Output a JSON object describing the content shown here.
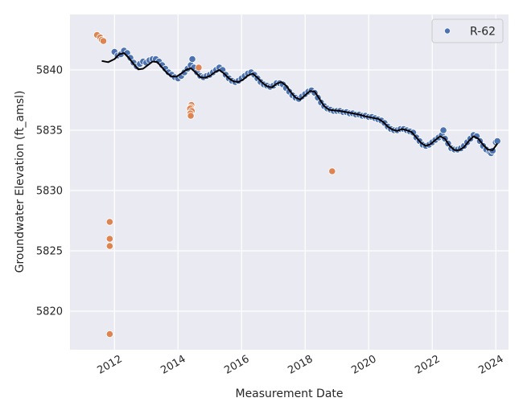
{
  "chart_data": {
    "type": "scatter",
    "title": "",
    "xlabel": "Measurement Date",
    "ylabel": "Groundwater Elevation (ft_amsl)",
    "xlim": [
      2010.6,
      2024.4
    ],
    "ylim": [
      5816.8,
      5844.6
    ],
    "x_ticks": [
      2012,
      2014,
      2016,
      2018,
      2020,
      2022,
      2024
    ],
    "x_tick_labels": [
      "2012",
      "2014",
      "2016",
      "2018",
      "2020",
      "2022",
      "2024"
    ],
    "y_ticks": [
      5820,
      5825,
      5830,
      5835,
      5840
    ],
    "y_tick_labels": [
      "5820",
      "5825",
      "5830",
      "5835",
      "5840"
    ],
    "grid": true,
    "legend": {
      "position": "top-right",
      "entries": [
        "R-62"
      ]
    },
    "colors": {
      "background": "#eaeaf2",
      "grid": "#ffffff",
      "series_valid": "#4c72b0",
      "series_outlier": "#dd8452",
      "trend_line": "#000000"
    },
    "series": [
      {
        "name": "R-62",
        "color": "#4c72b0",
        "points": [
          [
            2012.0,
            5841.5
          ],
          [
            2012.1,
            5841.2
          ],
          [
            2012.2,
            5841.3
          ],
          [
            2012.3,
            5841.6
          ],
          [
            2012.4,
            5841.4
          ],
          [
            2012.5,
            5841.0
          ],
          [
            2012.6,
            5840.6
          ],
          [
            2012.7,
            5840.3
          ],
          [
            2012.8,
            5840.5
          ],
          [
            2012.9,
            5840.7
          ],
          [
            2013.0,
            5840.6
          ],
          [
            2013.1,
            5840.8
          ],
          [
            2013.2,
            5840.9
          ],
          [
            2013.3,
            5840.9
          ],
          [
            2013.4,
            5840.7
          ],
          [
            2013.5,
            5840.4
          ],
          [
            2013.6,
            5840.1
          ],
          [
            2013.7,
            5839.8
          ],
          [
            2013.8,
            5839.6
          ],
          [
            2013.9,
            5839.4
          ],
          [
            2014.0,
            5839.3
          ],
          [
            2014.1,
            5839.5
          ],
          [
            2014.2,
            5839.8
          ],
          [
            2014.3,
            5840.1
          ],
          [
            2014.4,
            5840.4
          ],
          [
            2014.45,
            5840.9
          ],
          [
            2014.5,
            5840.2
          ],
          [
            2014.6,
            5839.8
          ],
          [
            2014.7,
            5839.5
          ],
          [
            2014.8,
            5839.4
          ],
          [
            2014.9,
            5839.5
          ],
          [
            2015.0,
            5839.6
          ],
          [
            2015.1,
            5839.8
          ],
          [
            2015.2,
            5840.0
          ],
          [
            2015.3,
            5840.2
          ],
          [
            2015.4,
            5840.0
          ],
          [
            2015.5,
            5839.6
          ],
          [
            2015.6,
            5839.3
          ],
          [
            2015.7,
            5839.1
          ],
          [
            2015.8,
            5839.0
          ],
          [
            2015.9,
            5839.1
          ],
          [
            2016.0,
            5839.3
          ],
          [
            2016.1,
            5839.5
          ],
          [
            2016.2,
            5839.7
          ],
          [
            2016.3,
            5839.8
          ],
          [
            2016.4,
            5839.6
          ],
          [
            2016.5,
            5839.3
          ],
          [
            2016.6,
            5839.0
          ],
          [
            2016.7,
            5838.8
          ],
          [
            2016.8,
            5838.7
          ],
          [
            2016.9,
            5838.6
          ],
          [
            2017.0,
            5838.7
          ],
          [
            2017.1,
            5838.9
          ],
          [
            2017.2,
            5838.9
          ],
          [
            2017.3,
            5838.8
          ],
          [
            2017.4,
            5838.5
          ],
          [
            2017.5,
            5838.2
          ],
          [
            2017.6,
            5837.9
          ],
          [
            2017.7,
            5837.7
          ],
          [
            2017.8,
            5837.6
          ],
          [
            2017.9,
            5837.8
          ],
          [
            2018.0,
            5838.0
          ],
          [
            2018.1,
            5838.2
          ],
          [
            2018.2,
            5838.3
          ],
          [
            2018.3,
            5838.1
          ],
          [
            2018.4,
            5837.7
          ],
          [
            2018.5,
            5837.3
          ],
          [
            2018.6,
            5837.0
          ],
          [
            2018.7,
            5836.8
          ],
          [
            2018.8,
            5836.7
          ],
          [
            2018.9,
            5836.6
          ],
          [
            2019.0,
            5836.6
          ],
          [
            2019.1,
            5836.6
          ],
          [
            2019.2,
            5836.5
          ],
          [
            2019.3,
            5836.5
          ],
          [
            2019.4,
            5836.4
          ],
          [
            2019.5,
            5836.4
          ],
          [
            2019.6,
            5836.3
          ],
          [
            2019.7,
            5836.3
          ],
          [
            2019.8,
            5836.2
          ],
          [
            2019.9,
            5836.2
          ],
          [
            2020.0,
            5836.1
          ],
          [
            2020.1,
            5836.1
          ],
          [
            2020.2,
            5836.0
          ],
          [
            2020.3,
            5835.9
          ],
          [
            2020.4,
            5835.8
          ],
          [
            2020.5,
            5835.6
          ],
          [
            2020.6,
            5835.3
          ],
          [
            2020.7,
            5835.1
          ],
          [
            2020.8,
            5835.0
          ],
          [
            2020.9,
            5835.0
          ],
          [
            2021.0,
            5835.1
          ],
          [
            2021.1,
            5835.1
          ],
          [
            2021.2,
            5835.0
          ],
          [
            2021.3,
            5834.9
          ],
          [
            2021.4,
            5834.8
          ],
          [
            2021.5,
            5834.4
          ],
          [
            2021.6,
            5834.1
          ],
          [
            2021.7,
            5833.8
          ],
          [
            2021.8,
            5833.7
          ],
          [
            2021.9,
            5833.8
          ],
          [
            2022.0,
            5834.0
          ],
          [
            2022.1,
            5834.2
          ],
          [
            2022.2,
            5834.4
          ],
          [
            2022.3,
            5834.6
          ],
          [
            2022.35,
            5835.0
          ],
          [
            2022.4,
            5834.3
          ],
          [
            2022.5,
            5833.9
          ],
          [
            2022.6,
            5833.5
          ],
          [
            2022.7,
            5833.4
          ],
          [
            2022.8,
            5833.4
          ],
          [
            2022.9,
            5833.5
          ],
          [
            2023.0,
            5833.7
          ],
          [
            2023.1,
            5834.0
          ],
          [
            2023.2,
            5834.3
          ],
          [
            2023.3,
            5834.6
          ],
          [
            2023.4,
            5834.5
          ],
          [
            2023.5,
            5834.1
          ],
          [
            2023.6,
            5833.7
          ],
          [
            2023.7,
            5833.4
          ],
          [
            2023.8,
            5833.2
          ],
          [
            2023.85,
            5833.1
          ],
          [
            2023.9,
            5833.3
          ],
          [
            2024.0,
            5834.0
          ],
          [
            2024.05,
            5834.1
          ]
        ]
      },
      {
        "name": "",
        "color": "#dd8452",
        "points": [
          [
            2011.45,
            5842.9
          ],
          [
            2011.55,
            5842.7
          ],
          [
            2011.6,
            5842.5
          ],
          [
            2011.65,
            5842.4
          ],
          [
            2011.85,
            5827.4
          ],
          [
            2011.85,
            5826.0
          ],
          [
            2011.85,
            5825.4
          ],
          [
            2011.85,
            5818.1
          ],
          [
            2014.42,
            5837.1
          ],
          [
            2014.4,
            5836.9
          ],
          [
            2014.38,
            5836.8
          ],
          [
            2014.43,
            5836.6
          ],
          [
            2014.39,
            5836.4
          ],
          [
            2014.4,
            5836.2
          ],
          [
            2014.65,
            5840.2
          ],
          [
            2018.85,
            5831.6
          ]
        ]
      },
      {
        "name": "",
        "type": "line",
        "color": "#000000",
        "points": [
          [
            2011.6,
            5840.75
          ],
          [
            2011.8,
            5840.65
          ],
          [
            2012.0,
            5840.9
          ],
          [
            2012.15,
            5841.3
          ],
          [
            2012.3,
            5841.4
          ],
          [
            2012.45,
            5841.0
          ],
          [
            2012.6,
            5840.5
          ],
          [
            2012.75,
            5840.05
          ],
          [
            2012.9,
            5840.1
          ],
          [
            2013.05,
            5840.4
          ],
          [
            2013.2,
            5840.7
          ],
          [
            2013.35,
            5840.65
          ],
          [
            2013.5,
            5840.2
          ],
          [
            2013.65,
            5839.75
          ],
          [
            2013.8,
            5839.45
          ],
          [
            2013.95,
            5839.45
          ],
          [
            2014.1,
            5839.7
          ],
          [
            2014.25,
            5840.0
          ],
          [
            2014.4,
            5840.15
          ],
          [
            2014.55,
            5839.8
          ],
          [
            2014.7,
            5839.4
          ],
          [
            2014.85,
            5839.35
          ],
          [
            2015.0,
            5839.5
          ],
          [
            2015.15,
            5839.8
          ],
          [
            2015.3,
            5840.0
          ],
          [
            2015.45,
            5839.7
          ],
          [
            2015.6,
            5839.3
          ],
          [
            2015.75,
            5839.05
          ],
          [
            2015.9,
            5839.0
          ],
          [
            2016.05,
            5839.2
          ],
          [
            2016.2,
            5839.55
          ],
          [
            2016.35,
            5839.7
          ],
          [
            2016.5,
            5839.35
          ],
          [
            2016.65,
            5838.95
          ],
          [
            2016.8,
            5838.65
          ],
          [
            2016.95,
            5838.55
          ],
          [
            2017.1,
            5838.85
          ],
          [
            2017.25,
            5839.0
          ],
          [
            2017.4,
            5838.7
          ],
          [
            2017.55,
            5838.15
          ],
          [
            2017.7,
            5837.7
          ],
          [
            2017.85,
            5837.55
          ],
          [
            2018.0,
            5837.9
          ],
          [
            2018.15,
            5838.25
          ],
          [
            2018.3,
            5838.2
          ],
          [
            2018.45,
            5837.6
          ],
          [
            2018.6,
            5837.0
          ],
          [
            2018.75,
            5836.7
          ],
          [
            2018.9,
            5836.65
          ],
          [
            2019.1,
            5836.6
          ],
          [
            2019.3,
            5836.5
          ],
          [
            2019.5,
            5836.4
          ],
          [
            2019.7,
            5836.3
          ],
          [
            2019.9,
            5836.15
          ],
          [
            2020.1,
            5836.05
          ],
          [
            2020.3,
            5835.95
          ],
          [
            2020.45,
            5835.7
          ],
          [
            2020.6,
            5835.3
          ],
          [
            2020.75,
            5835.05
          ],
          [
            2020.9,
            5834.95
          ],
          [
            2021.05,
            5835.1
          ],
          [
            2021.2,
            5835.0
          ],
          [
            2021.35,
            5834.85
          ],
          [
            2021.5,
            5834.4
          ],
          [
            2021.65,
            5833.95
          ],
          [
            2021.8,
            5833.7
          ],
          [
            2021.95,
            5833.85
          ],
          [
            2022.1,
            5834.2
          ],
          [
            2022.25,
            5834.5
          ],
          [
            2022.4,
            5834.3
          ],
          [
            2022.55,
            5833.7
          ],
          [
            2022.7,
            5833.35
          ],
          [
            2022.85,
            5833.35
          ],
          [
            2023.0,
            5833.6
          ],
          [
            2023.15,
            5834.1
          ],
          [
            2023.3,
            5834.5
          ],
          [
            2023.45,
            5834.3
          ],
          [
            2023.6,
            5833.8
          ],
          [
            2023.75,
            5833.4
          ],
          [
            2023.9,
            5833.35
          ],
          [
            2024.05,
            5833.9
          ]
        ]
      }
    ]
  }
}
